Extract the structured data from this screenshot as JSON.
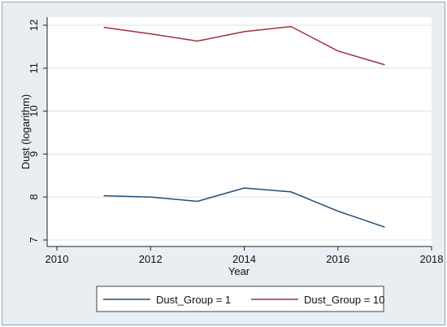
{
  "chart_data": {
    "type": "line",
    "title": "",
    "xlabel": "Year",
    "ylabel": "Dust (logarithm)",
    "xlim": [
      2010,
      2018
    ],
    "ylim": [
      7,
      12
    ],
    "x_ticks": [
      2010,
      2012,
      2014,
      2016,
      2018
    ],
    "y_ticks": [
      7,
      8,
      9,
      10,
      11,
      12
    ],
    "grid": "horizontal",
    "legend_position": "bottom",
    "series": [
      {
        "name": "Dust_Group = 1",
        "color": "#1f4e79",
        "x": [
          2011,
          2012,
          2013,
          2014,
          2015,
          2016,
          2017
        ],
        "values": [
          8.03,
          8.0,
          7.9,
          8.21,
          8.12,
          7.67,
          7.3
        ]
      },
      {
        "name": "Dust_Group = 10",
        "color": "#a0303c",
        "x": [
          2011,
          2012,
          2013,
          2014,
          2015,
          2016,
          2017
        ],
        "values": [
          11.95,
          11.8,
          11.63,
          11.85,
          11.97,
          11.4,
          11.08
        ]
      }
    ]
  },
  "colors": {
    "frame_background": "#e8eef2",
    "plot_background": "#ffffff",
    "gridline": "#dde3e7",
    "axis": "#222222"
  }
}
